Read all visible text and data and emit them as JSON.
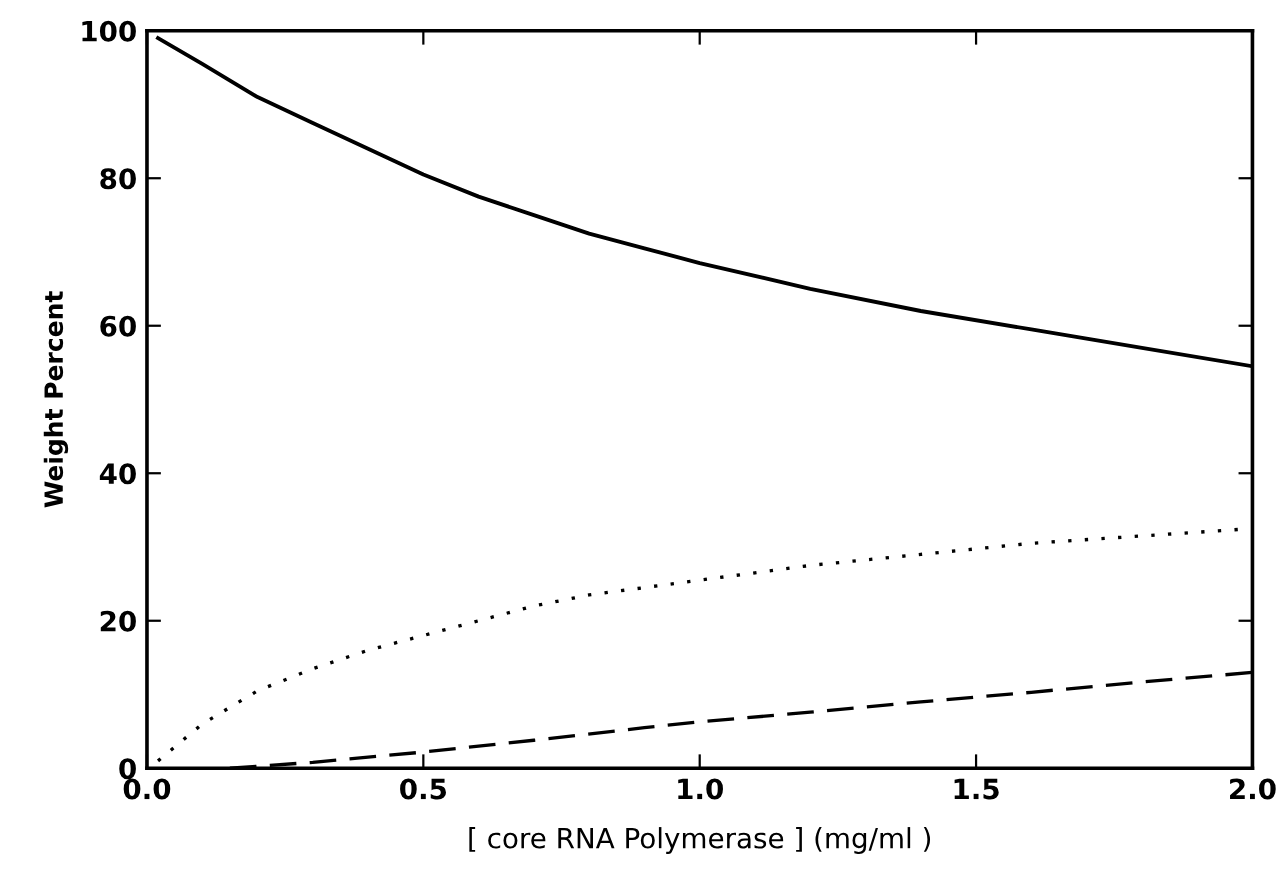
{
  "chart_data": {
    "type": "line",
    "xlabel": "[ core RNA Polymerase ] (mg/ml )",
    "ylabel": "Weight Percent",
    "xlim": [
      0,
      2
    ],
    "ylim": [
      0,
      100
    ],
    "xticks": [
      {
        "value": 0,
        "label": "0.0"
      },
      0.5,
      {
        "value": 1,
        "label": "1.0"
      },
      1.5,
      {
        "value": 2,
        "label": "2.0"
      }
    ],
    "yticks": [
      0,
      20,
      40,
      60,
      80,
      100
    ],
    "grid": false,
    "marker": "none",
    "series": [
      {
        "color": "#000000",
        "line_style": "solid",
        "x": [
          0.02,
          0.1,
          0.2,
          0.3,
          0.4,
          0.5,
          0.6,
          0.7,
          0.8,
          0.9,
          1.0,
          1.2,
          1.4,
          1.6,
          1.8,
          2.0
        ],
        "values": [
          99,
          95.5,
          91,
          87.5,
          84,
          80.5,
          77.5,
          75,
          72.5,
          70.5,
          68.5,
          65,
          62,
          59.5,
          57,
          54.5
        ]
      },
      {
        "color": "#000000",
        "line_style": "dotted",
        "x": [
          0.02,
          0.1,
          0.2,
          0.3,
          0.4,
          0.5,
          0.6,
          0.7,
          0.8,
          0.9,
          1.0,
          1.2,
          1.4,
          1.6,
          1.8,
          2.0
        ],
        "values": [
          1,
          6,
          10.5,
          13.5,
          16,
          18,
          20,
          22,
          23.5,
          24.5,
          25.5,
          27.5,
          29,
          30.5,
          31.5,
          32.5
        ]
      },
      {
        "color": "#000000",
        "line_style": "dashed",
        "x": [
          0.15,
          0.3,
          0.5,
          0.7,
          0.9,
          1.0,
          1.2,
          1.4,
          1.6,
          1.8,
          2.0
        ],
        "values": [
          0,
          0.8,
          2.2,
          3.8,
          5.5,
          6.3,
          7.6,
          9,
          10.3,
          11.7,
          13
        ]
      }
    ]
  }
}
